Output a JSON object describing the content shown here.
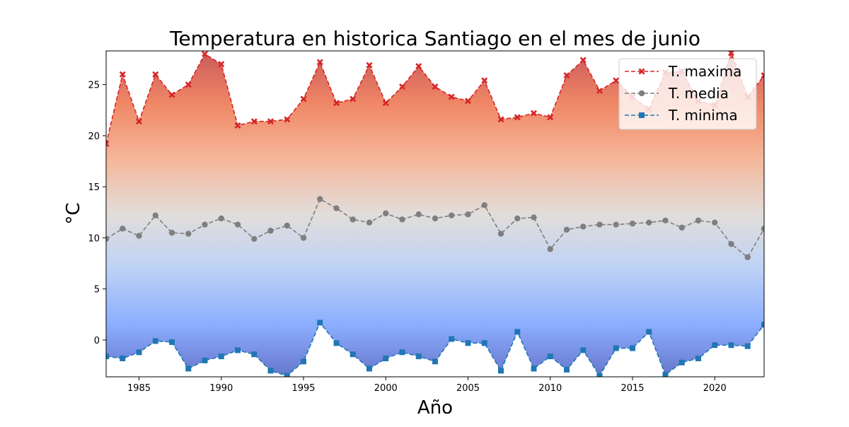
{
  "chart_data": {
    "type": "line",
    "title": "Temperatura en historica Santiago en el mes de junio",
    "xlabel": "Año",
    "ylabel": "°C",
    "xlim": [
      1983,
      2023
    ],
    "ylim": [
      -3.6,
      28.3
    ],
    "xticks": [
      1985,
      1990,
      1995,
      2000,
      2005,
      2010,
      2015,
      2020
    ],
    "yticks": [
      0,
      5,
      10,
      15,
      20,
      25
    ],
    "grid": false,
    "legend_position": "top-right",
    "fill_between": "T. maxima to T. minima, vertical coolwarm gradient",
    "x": [
      1983,
      1984,
      1985,
      1986,
      1987,
      1988,
      1989,
      1990,
      1991,
      1992,
      1993,
      1994,
      1995,
      1996,
      1997,
      1998,
      1999,
      2000,
      2001,
      2002,
      2003,
      2004,
      2005,
      2006,
      2007,
      2008,
      2009,
      2010,
      2011,
      2012,
      2013,
      2014,
      2015,
      2016,
      2017,
      2018,
      2019,
      2020,
      2021,
      2022,
      2023
    ],
    "series": [
      {
        "name": "T. maxima",
        "color": "#d62728",
        "marker": "X",
        "values": [
          19.2,
          26.0,
          21.4,
          26.0,
          24.0,
          25.0,
          28.0,
          27.0,
          21.0,
          21.4,
          21.4,
          21.6,
          23.6,
          27.2,
          23.2,
          23.6,
          26.9,
          23.2,
          24.8,
          26.8,
          24.8,
          23.8,
          23.4,
          25.4,
          21.6,
          21.8,
          22.2,
          21.8,
          25.9,
          27.4,
          24.4,
          25.4,
          23.8,
          22.6,
          26.2,
          26.3,
          23.4,
          23.0,
          28.1,
          23.8,
          25.9
        ]
      },
      {
        "name": "T. media",
        "color": "#7f7f7f",
        "marker": "o",
        "values": [
          9.9,
          10.9,
          10.2,
          12.2,
          10.5,
          10.4,
          11.3,
          11.9,
          11.3,
          9.9,
          10.7,
          11.2,
          10.0,
          13.8,
          12.9,
          11.8,
          11.5,
          12.4,
          11.8,
          12.3,
          11.9,
          12.2,
          12.3,
          13.2,
          10.4,
          11.9,
          12.0,
          8.9,
          10.8,
          11.1,
          11.3,
          11.3,
          11.4,
          11.5,
          11.7,
          11.0,
          11.7,
          11.5,
          9.4,
          8.1,
          10.9
        ]
      },
      {
        "name": "T. minima",
        "color": "#1f77b4",
        "marker": "s",
        "values": [
          -1.6,
          -1.8,
          -1.2,
          -0.1,
          -0.2,
          -2.8,
          -2.0,
          -1.6,
          -1.0,
          -1.4,
          -3.0,
          -3.5,
          -2.1,
          1.7,
          -0.3,
          -1.4,
          -2.8,
          -1.8,
          -1.2,
          -1.6,
          -2.1,
          0.1,
          -0.3,
          -0.3,
          -3.0,
          0.8,
          -2.8,
          -1.6,
          -2.9,
          -1.0,
          -3.5,
          -0.8,
          -0.8,
          0.8,
          -3.4,
          -2.2,
          -1.8,
          -0.5,
          -0.5,
          -0.6,
          1.5
        ]
      }
    ]
  }
}
